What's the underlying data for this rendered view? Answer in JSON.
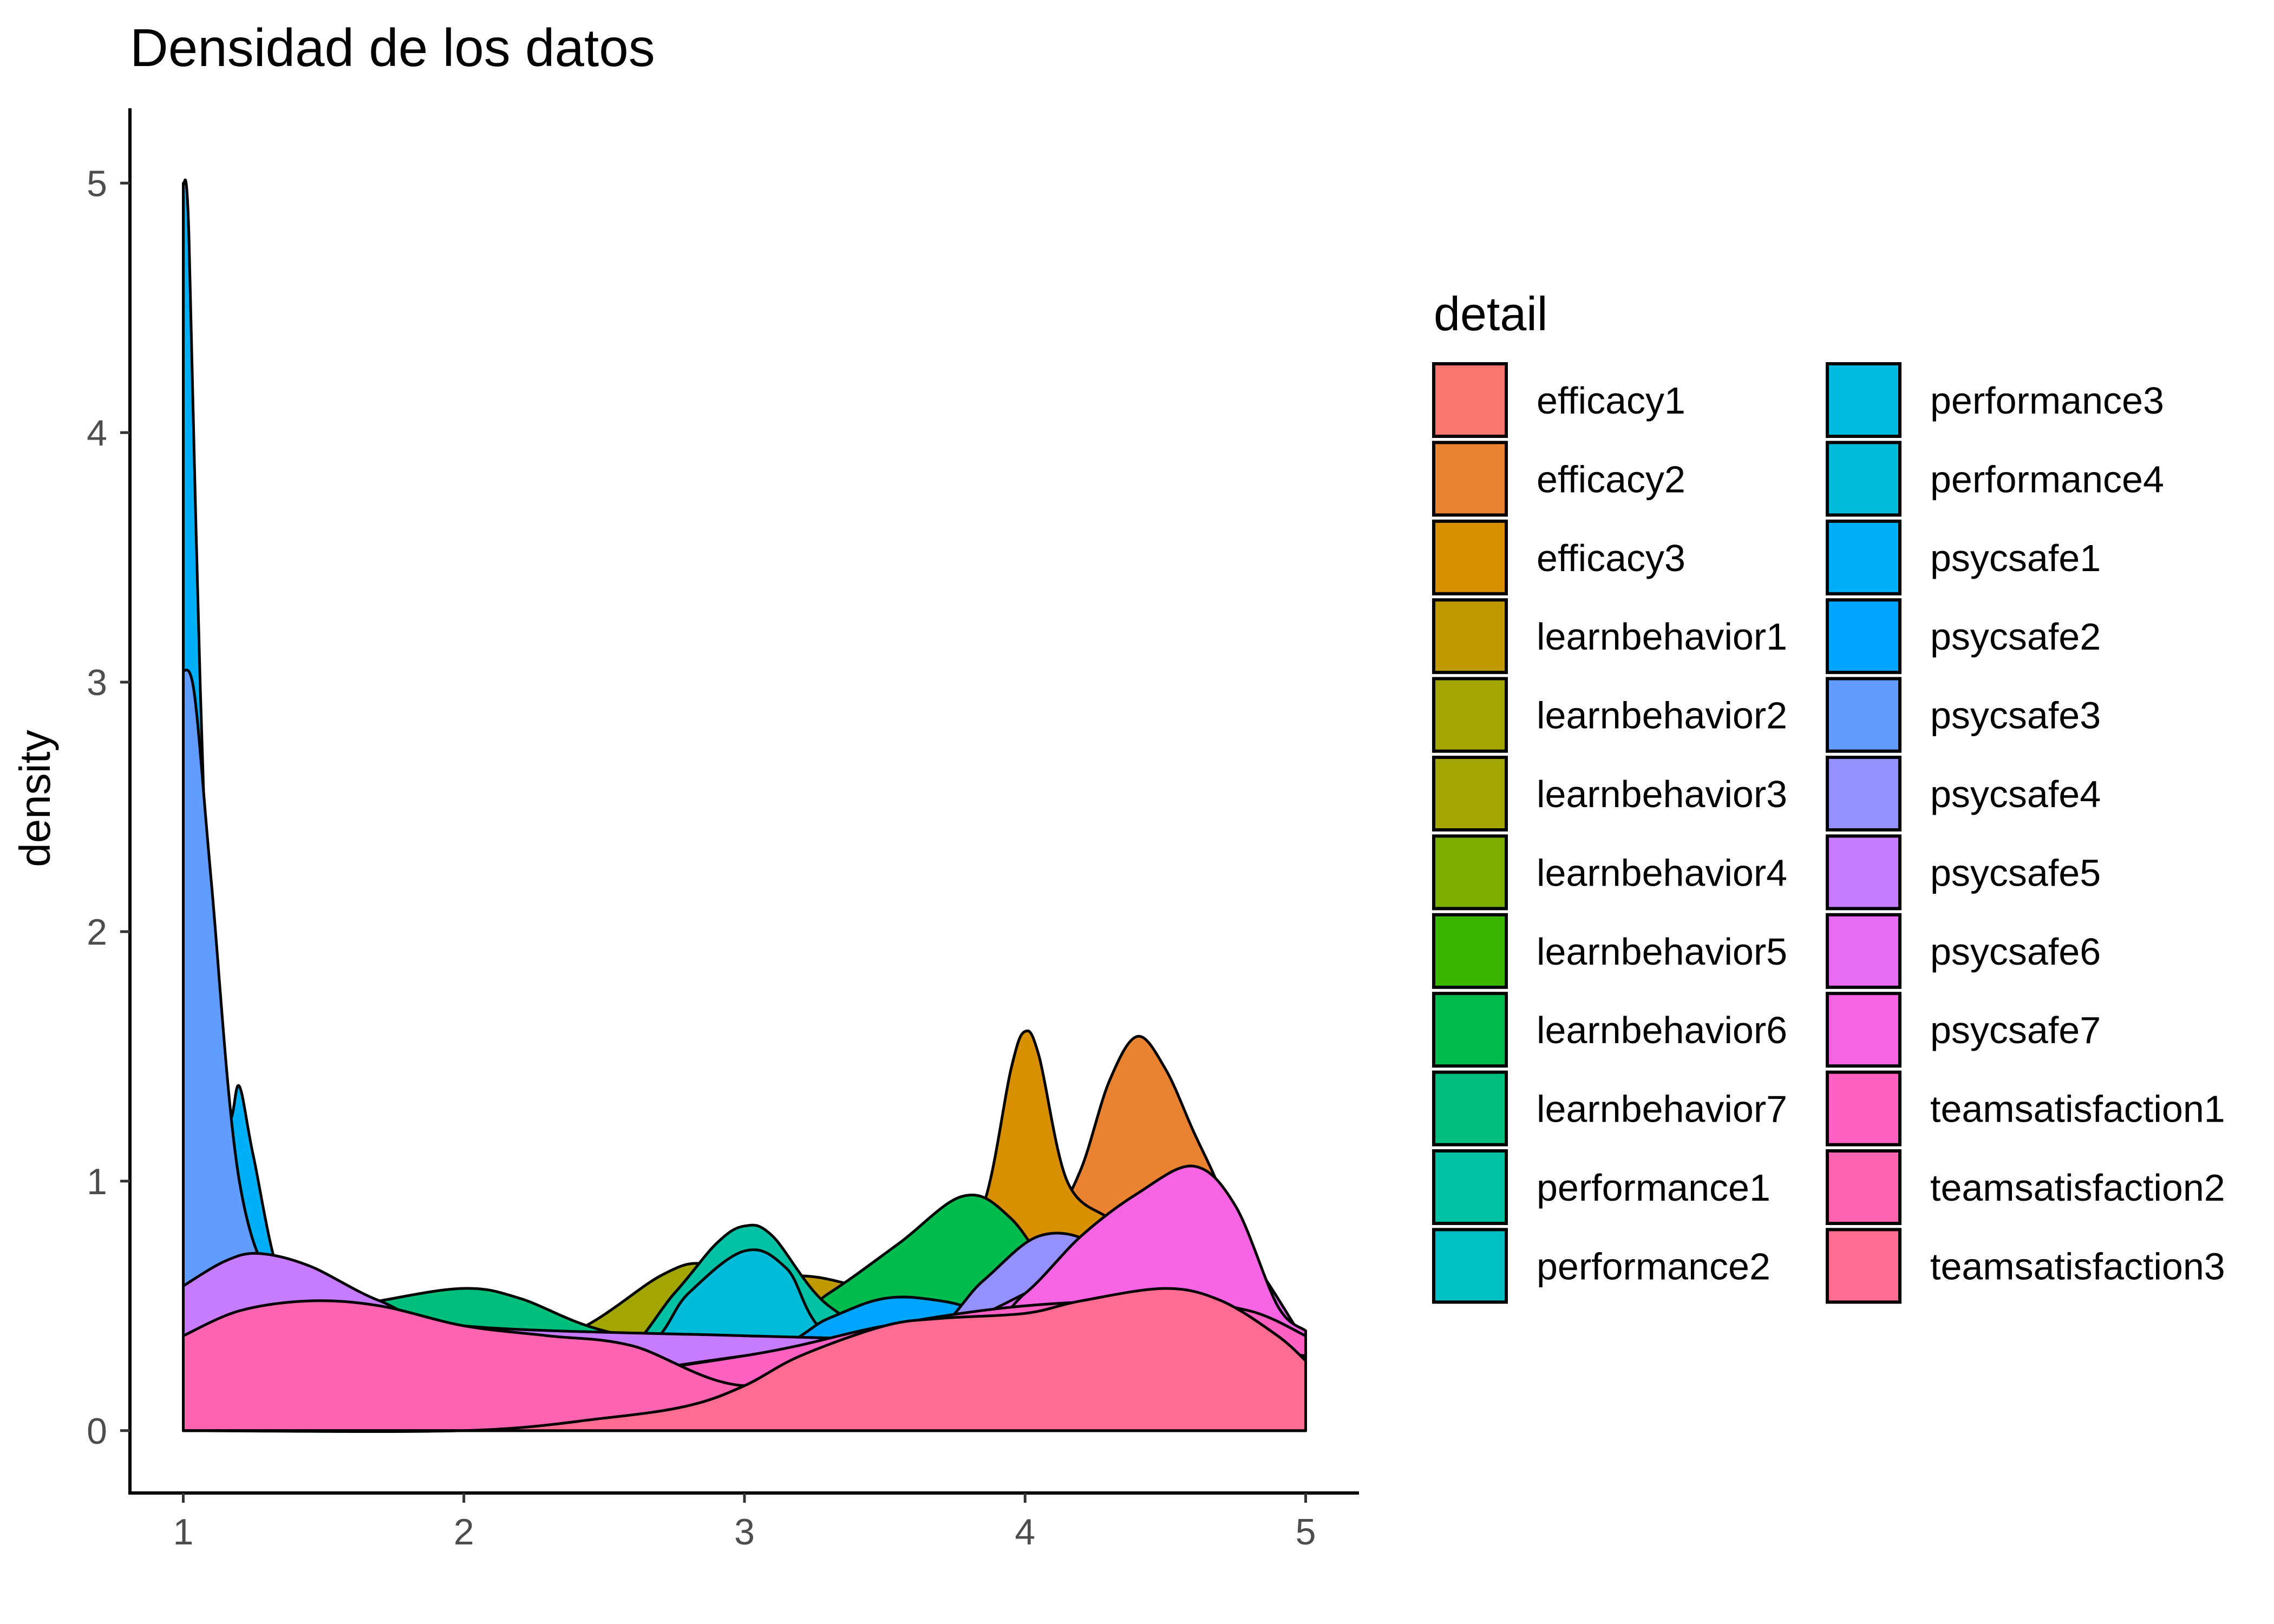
{
  "chart_data": {
    "type": "area",
    "subtype": "density",
    "title": "Densidad de los datos",
    "xlabel": "",
    "ylabel": "density",
    "xlim": [
      0.81,
      5.19
    ],
    "ylim": [
      -0.25,
      5.3
    ],
    "x_ticks": [
      1,
      2,
      3,
      4,
      5
    ],
    "y_ticks": [
      0,
      1,
      2,
      3,
      4,
      5
    ],
    "grid": false,
    "legend_title": "detail",
    "legend_position": "right",
    "series": [
      {
        "name": "efficacy1",
        "color": "#F8766D",
        "points": [
          [
            1,
            0.05
          ],
          [
            5,
            0.05
          ]
        ]
      },
      {
        "name": "efficacy2",
        "color": "#EA8331",
        "points": [
          [
            1,
            0.1
          ],
          [
            2,
            0.15
          ],
          [
            3,
            0.25
          ],
          [
            3.6,
            0.35
          ],
          [
            3.9,
            0.6
          ],
          [
            4.1,
            0.85
          ],
          [
            4.2,
            1.05
          ],
          [
            4.3,
            1.4
          ],
          [
            4.4,
            1.58
          ],
          [
            4.5,
            1.45
          ],
          [
            4.6,
            1.2
          ],
          [
            4.7,
            0.95
          ],
          [
            4.8,
            0.6
          ],
          [
            4.9,
            0.4
          ],
          [
            5,
            0.3
          ]
        ]
      },
      {
        "name": "efficacy3",
        "color": "#D89000",
        "points": [
          [
            1,
            0.08
          ],
          [
            2,
            0.15
          ],
          [
            3,
            0.3
          ],
          [
            3.4,
            0.45
          ],
          [
            3.7,
            0.7
          ],
          [
            3.85,
            0.9
          ],
          [
            3.95,
            1.45
          ],
          [
            4.0,
            1.6
          ],
          [
            4.05,
            1.5
          ],
          [
            4.15,
            1.0
          ],
          [
            4.3,
            0.85
          ],
          [
            4.45,
            0.75
          ],
          [
            4.7,
            0.5
          ],
          [
            5,
            0.3
          ]
        ]
      },
      {
        "name": "learnbehavior1",
        "color": "#C09B00",
        "points": [
          [
            1,
            0.08
          ],
          [
            2,
            0.2
          ],
          [
            2.6,
            0.4
          ],
          [
            3,
            0.55
          ],
          [
            3.2,
            0.62
          ],
          [
            3.5,
            0.55
          ],
          [
            4,
            0.4
          ],
          [
            5,
            0.25
          ]
        ]
      },
      {
        "name": "learnbehavior2",
        "color": "#A3A500",
        "points": [
          [
            1,
            0.08
          ],
          [
            2,
            0.25
          ],
          [
            2.4,
            0.4
          ],
          [
            2.7,
            0.62
          ],
          [
            2.85,
            0.67
          ],
          [
            3,
            0.6
          ],
          [
            3.3,
            0.45
          ],
          [
            4,
            0.35
          ],
          [
            5,
            0.25
          ]
        ]
      },
      {
        "name": "learnbehavior3",
        "color": "#A3A500",
        "points": [
          [
            1,
            0.08
          ],
          [
            2,
            0.22
          ],
          [
            3,
            0.4
          ],
          [
            4,
            0.38
          ],
          [
            5,
            0.25
          ]
        ]
      },
      {
        "name": "learnbehavior4",
        "color": "#7CAE00",
        "points": [
          [
            1,
            0.08
          ],
          [
            2,
            0.25
          ],
          [
            3,
            0.4
          ],
          [
            4,
            0.38
          ],
          [
            5,
            0.25
          ]
        ]
      },
      {
        "name": "learnbehavior5",
        "color": "#39B600",
        "points": [
          [
            1,
            0.08
          ],
          [
            2,
            0.3
          ],
          [
            3,
            0.42
          ],
          [
            3.5,
            0.6
          ],
          [
            3.8,
            0.7
          ],
          [
            4,
            0.55
          ],
          [
            5,
            0.3
          ]
        ]
      },
      {
        "name": "learnbehavior6",
        "color": "#00BB4E",
        "points": [
          [
            1,
            0.08
          ],
          [
            2,
            0.25
          ],
          [
            3,
            0.35
          ],
          [
            3.3,
            0.55
          ],
          [
            3.55,
            0.75
          ],
          [
            3.78,
            0.94
          ],
          [
            3.95,
            0.85
          ],
          [
            4.2,
            0.5
          ],
          [
            4.6,
            0.35
          ],
          [
            5,
            0.25
          ]
        ]
      },
      {
        "name": "learnbehavior7",
        "color": "#00BF7D",
        "points": [
          [
            1,
            0.35
          ],
          [
            1.4,
            0.45
          ],
          [
            1.7,
            0.52
          ],
          [
            2,
            0.57
          ],
          [
            2.2,
            0.53
          ],
          [
            2.5,
            0.4
          ],
          [
            3,
            0.3
          ],
          [
            4,
            0.3
          ],
          [
            5,
            0.25
          ]
        ]
      },
      {
        "name": "performance1",
        "color": "#00C1A3",
        "points": [
          [
            1,
            0.08
          ],
          [
            2,
            0.15
          ],
          [
            2.5,
            0.25
          ],
          [
            2.75,
            0.55
          ],
          [
            2.9,
            0.75
          ],
          [
            3,
            0.82
          ],
          [
            3.1,
            0.78
          ],
          [
            3.3,
            0.5
          ],
          [
            3.6,
            0.35
          ],
          [
            4,
            0.35
          ],
          [
            5,
            0.25
          ]
        ]
      },
      {
        "name": "performance2",
        "color": "#00BFC4",
        "points": [
          [
            1,
            0.05
          ],
          [
            5,
            0.05
          ]
        ]
      },
      {
        "name": "performance3",
        "color": "#00BAE0",
        "points": [
          [
            1,
            0.05
          ],
          [
            5,
            0.05
          ]
        ]
      },
      {
        "name": "performance4",
        "color": "#00BCD8",
        "points": [
          [
            1,
            0.08
          ],
          [
            2,
            0.15
          ],
          [
            2.6,
            0.3
          ],
          [
            2.8,
            0.55
          ],
          [
            3,
            0.72
          ],
          [
            3.15,
            0.65
          ],
          [
            3.35,
            0.35
          ],
          [
            4,
            0.3
          ],
          [
            5,
            0.25
          ]
        ]
      },
      {
        "name": "psycsafe1",
        "color": "#00B0F6",
        "points": [
          [
            1,
            5.0
          ],
          [
            1.02,
            4.8
          ],
          [
            1.06,
            3.0
          ],
          [
            1.12,
            1.2
          ],
          [
            1.17,
            1.25
          ],
          [
            1.2,
            1.38
          ],
          [
            1.25,
            1.1
          ],
          [
            1.35,
            0.6
          ],
          [
            1.5,
            0.45
          ],
          [
            2,
            0.35
          ],
          [
            3,
            0.3
          ],
          [
            5,
            0.25
          ]
        ]
      },
      {
        "name": "psycsafe2",
        "color": "#00A5FF",
        "points": [
          [
            1,
            0.08
          ],
          [
            2,
            0.15
          ],
          [
            3,
            0.3
          ],
          [
            3.3,
            0.45
          ],
          [
            3.5,
            0.53
          ],
          [
            3.7,
            0.52
          ],
          [
            4,
            0.45
          ],
          [
            5,
            0.3
          ]
        ]
      },
      {
        "name": "psycsafe3",
        "color": "#619CFF",
        "points": [
          [
            1,
            3.05
          ],
          [
            1.04,
            2.95
          ],
          [
            1.1,
            2.2
          ],
          [
            1.2,
            1.0
          ],
          [
            1.35,
            0.55
          ],
          [
            1.6,
            0.4
          ],
          [
            2,
            0.35
          ],
          [
            3,
            0.3
          ],
          [
            5,
            0.25
          ]
        ]
      },
      {
        "name": "psycsafe4",
        "color": "#9590FF",
        "points": [
          [
            1,
            0.08
          ],
          [
            2,
            0.15
          ],
          [
            3,
            0.25
          ],
          [
            3.6,
            0.35
          ],
          [
            3.85,
            0.6
          ],
          [
            4.05,
            0.78
          ],
          [
            4.25,
            0.75
          ],
          [
            4.5,
            0.55
          ],
          [
            5,
            0.3
          ]
        ]
      },
      {
        "name": "psycsafe5",
        "color": "#C77CFF",
        "points": [
          [
            1,
            0.58
          ],
          [
            1.15,
            0.68
          ],
          [
            1.27,
            0.71
          ],
          [
            1.45,
            0.66
          ],
          [
            1.7,
            0.52
          ],
          [
            2,
            0.42
          ],
          [
            3,
            0.38
          ],
          [
            4,
            0.35
          ],
          [
            5,
            0.3
          ]
        ]
      },
      {
        "name": "psycsafe6",
        "color": "#E76BF3",
        "points": [
          [
            1,
            0.1
          ],
          [
            2,
            0.12
          ],
          [
            3,
            0.2
          ],
          [
            3.5,
            0.3
          ],
          [
            4,
            0.55
          ],
          [
            4.2,
            0.7
          ],
          [
            4.4,
            0.85
          ],
          [
            4.6,
            0.95
          ],
          [
            4.8,
            0.7
          ],
          [
            5,
            0.35
          ]
        ]
      },
      {
        "name": "psycsafe7",
        "color": "#F564E3",
        "points": [
          [
            1,
            0.1
          ],
          [
            2,
            0.15
          ],
          [
            3,
            0.3
          ],
          [
            3.8,
            0.42
          ],
          [
            4.0,
            0.55
          ],
          [
            4.2,
            0.78
          ],
          [
            4.4,
            0.95
          ],
          [
            4.6,
            1.06
          ],
          [
            4.75,
            0.9
          ],
          [
            4.9,
            0.5
          ],
          [
            5,
            0.4
          ]
        ]
      },
      {
        "name": "teamsatisfaction1",
        "color": "#FF61C3",
        "points": [
          [
            1,
            0.08
          ],
          [
            2,
            0.15
          ],
          [
            3,
            0.3
          ],
          [
            3.5,
            0.42
          ],
          [
            4,
            0.5
          ],
          [
            4.5,
            0.52
          ],
          [
            4.8,
            0.48
          ],
          [
            5,
            0.38
          ]
        ]
      },
      {
        "name": "teamsatisfaction2",
        "color": "#FF64B0",
        "points": [
          [
            1,
            0.38
          ],
          [
            1.2,
            0.48
          ],
          [
            1.45,
            0.52
          ],
          [
            1.7,
            0.5
          ],
          [
            2,
            0.42
          ],
          [
            2.3,
            0.38
          ],
          [
            2.6,
            0.34
          ],
          [
            3,
            0.18
          ],
          [
            3.5,
            0.28
          ],
          [
            4,
            0.4
          ],
          [
            5,
            0.3
          ]
        ]
      },
      {
        "name": "teamsatisfaction3",
        "color": "#FF6C91",
        "points": [
          [
            1,
            0.0
          ],
          [
            2,
            0.0
          ],
          [
            2.5,
            0.05
          ],
          [
            2.8,
            0.1
          ],
          [
            3,
            0.18
          ],
          [
            3.2,
            0.3
          ],
          [
            3.5,
            0.42
          ],
          [
            3.7,
            0.45
          ],
          [
            4,
            0.47
          ],
          [
            4.2,
            0.52
          ],
          [
            4.5,
            0.57
          ],
          [
            4.7,
            0.52
          ],
          [
            4.9,
            0.38
          ],
          [
            5,
            0.28
          ]
        ]
      }
    ]
  }
}
